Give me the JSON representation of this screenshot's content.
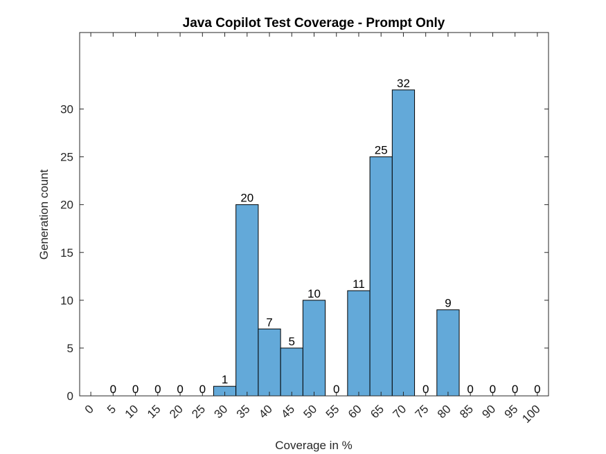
{
  "chart_data": {
    "type": "bar",
    "title": "Java Copilot Test Coverage - Prompt Only",
    "xlabel": "Coverage in %",
    "ylabel": "Generation count",
    "categories": [
      "0",
      "5",
      "10",
      "15",
      "20",
      "25",
      "30",
      "35",
      "40",
      "45",
      "50",
      "55",
      "60",
      "65",
      "70",
      "75",
      "80",
      "85",
      "90",
      "95"
    ],
    "x_tick_labels": [
      "0",
      "5",
      "10",
      "15",
      "20",
      "25",
      "30",
      "35",
      "40",
      "45",
      "50",
      "55",
      "60",
      "65",
      "70",
      "75",
      "80",
      "85",
      "90",
      "95",
      "100"
    ],
    "y_tick_labels": [
      "0",
      "5",
      "10",
      "15",
      "20",
      "25",
      "30"
    ],
    "values": [
      0,
      0,
      0,
      0,
      0,
      1,
      20,
      7,
      5,
      10,
      0,
      11,
      25,
      32,
      0,
      9,
      0,
      0,
      0,
      0
    ],
    "data_labels": [
      "0",
      "0",
      "0",
      "0",
      "0",
      "1",
      "20",
      "7",
      "5",
      "10",
      "0",
      "11",
      "25",
      "32",
      "0",
      "9",
      "0",
      "0",
      "0",
      "0"
    ],
    "ylim": [
      0,
      38
    ],
    "xlim": [
      -1,
      20
    ],
    "bar_color": "#63a9d9",
    "grid": false,
    "legend": "none"
  }
}
